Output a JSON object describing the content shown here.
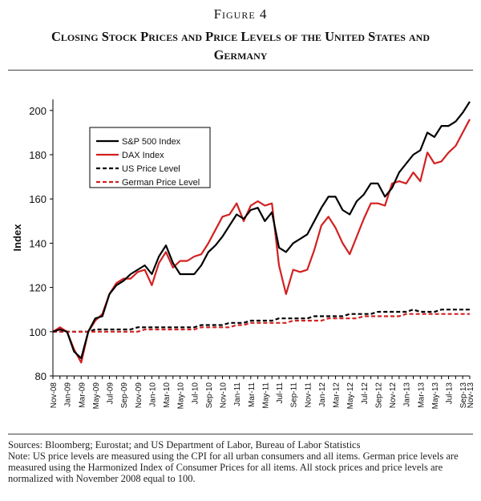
{
  "figure": {
    "label": "Figure 4",
    "title": "Closing Stock Prices and Price Levels of the United States and Germany"
  },
  "chart_data": {
    "type": "line",
    "ylabel": "Index",
    "ylim": [
      80,
      205
    ],
    "yticks": [
      80,
      100,
      120,
      140,
      160,
      180,
      200
    ],
    "xlabels": [
      "Nov-08",
      "Jan-09",
      "Mar-09",
      "May-09",
      "Jul-09",
      "Sep-09",
      "Nov-09",
      "Jan-10",
      "Mar-10",
      "May-10",
      "Jul-10",
      "Sep-10",
      "Nov-10",
      "Jan-11",
      "Mar-11",
      "May-11",
      "Jul-11",
      "Sep-11",
      "Nov-11",
      "Jan-12",
      "Mar-12",
      "May-12",
      "Jul-12",
      "Sep-12",
      "Nov-12",
      "Jan-13",
      "Mar-13",
      "May-13",
      "Jul-13",
      "Sep-13",
      "Nov-13"
    ],
    "grid": false,
    "legend_position": "top-left",
    "series": [
      {
        "name": "S&P 500 Index",
        "color": "#000000",
        "dash": "solid",
        "values": [
          100,
          101,
          100,
          91,
          88,
          100,
          106,
          107,
          117,
          121,
          123,
          126,
          128,
          130,
          126,
          134,
          139,
          131,
          126,
          126,
          126,
          130,
          136,
          139,
          143,
          148,
          153,
          151,
          155,
          156,
          150,
          154,
          138,
          136,
          140,
          142,
          144,
          150,
          156,
          161,
          161,
          155,
          153,
          159,
          162,
          167,
          167,
          161,
          165,
          172,
          176,
          180,
          182,
          190,
          188,
          193,
          193,
          195,
          199,
          204
        ]
      },
      {
        "name": "DAX Index",
        "color": "#d32020",
        "dash": "solid",
        "values": [
          100,
          102,
          100,
          92,
          86,
          100,
          105,
          108,
          117,
          122,
          124,
          124,
          127,
          128,
          121,
          131,
          136,
          129,
          132,
          132,
          134,
          135,
          140,
          146,
          152,
          153,
          158,
          150,
          157,
          159,
          157,
          158,
          130,
          117,
          128,
          127,
          128,
          137,
          148,
          152,
          147,
          140,
          135,
          143,
          151,
          158,
          158,
          157,
          167,
          168,
          167,
          172,
          168,
          181,
          176,
          177,
          181,
          184,
          190,
          196
        ]
      },
      {
        "name": "US Price Level",
        "color": "#000000",
        "dash": "dashed",
        "values": [
          100,
          100,
          100,
          100,
          100,
          100,
          101,
          101,
          101,
          101,
          101,
          101,
          102,
          102,
          102,
          102,
          102,
          102,
          102,
          102,
          102,
          103,
          103,
          103,
          103,
          104,
          104,
          104,
          105,
          105,
          105,
          105,
          106,
          106,
          106,
          106,
          106,
          107,
          107,
          107,
          107,
          107,
          108,
          108,
          108,
          108,
          109,
          109,
          109,
          109,
          109,
          110,
          109,
          109,
          109,
          110,
          110,
          110,
          110,
          110
        ]
      },
      {
        "name": "German Price Level",
        "color": "#d32020",
        "dash": "dashed",
        "values": [
          100,
          100,
          100,
          100,
          100,
          100,
          100,
          100,
          100,
          100,
          100,
          100,
          100,
          101,
          101,
          101,
          101,
          101,
          101,
          101,
          101,
          102,
          102,
          102,
          102,
          102,
          103,
          103,
          104,
          104,
          104,
          104,
          104,
          104,
          105,
          105,
          105,
          105,
          105,
          106,
          106,
          106,
          106,
          106,
          107,
          107,
          107,
          107,
          107,
          107,
          108,
          108,
          108,
          108,
          108,
          108,
          108,
          108,
          108,
          108
        ]
      }
    ]
  },
  "notes": {
    "sources": "Sources: Bloomberg; Eurostat; and US Department of Labor, Bureau of Labor Statistics",
    "note": "Note: US price levels are measured using the CPI for all urban consumers and all items. German price levels are measured using the Harmonized Index of Consumer Prices for all items. All stock prices and price levels are normalized with November 2008 equal to 100."
  }
}
